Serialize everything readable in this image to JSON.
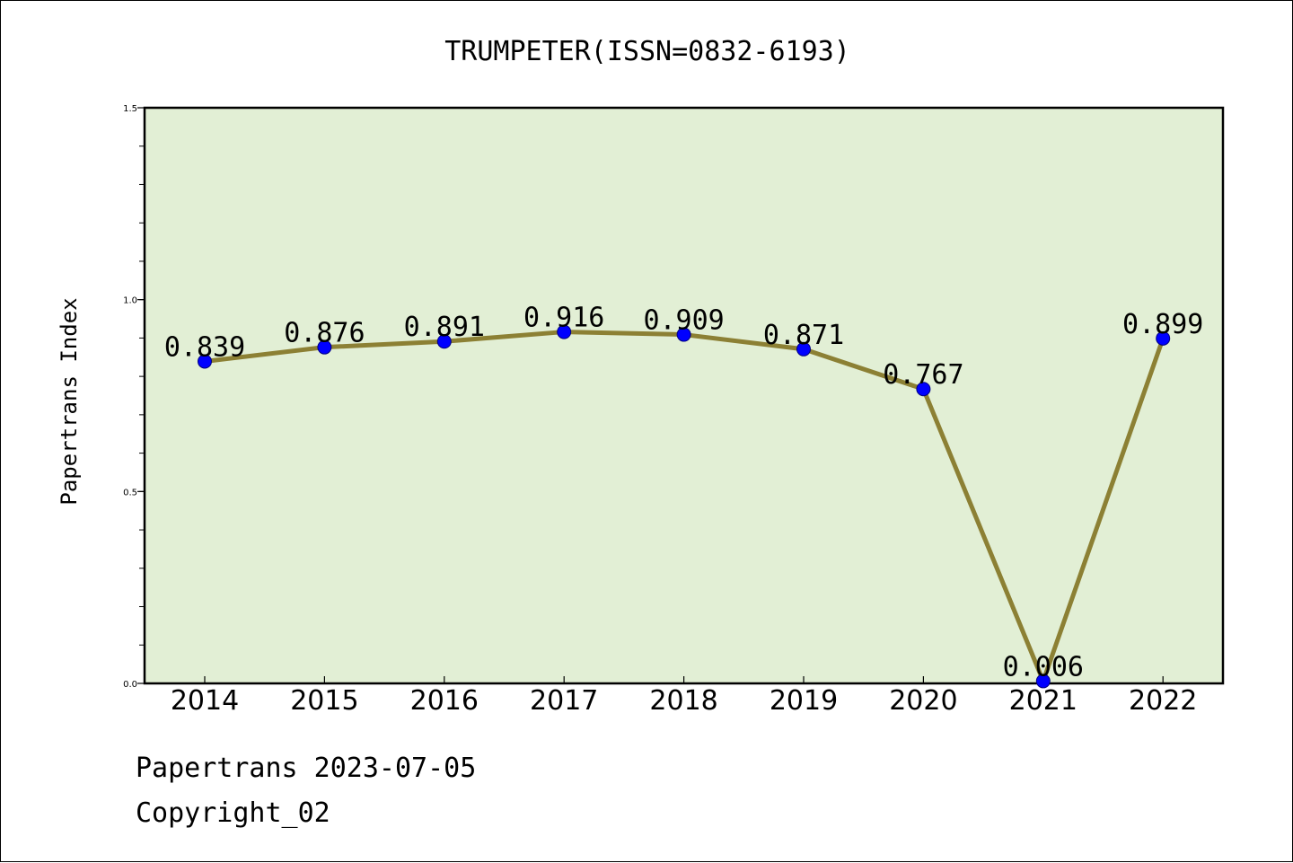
{
  "chart_data": {
    "type": "line",
    "title": "TRUMPETER(ISSN=0832-6193)",
    "xlabel": "",
    "ylabel": "Papertrans Index",
    "categories": [
      "2014",
      "2015",
      "2016",
      "2017",
      "2018",
      "2019",
      "2020",
      "2021",
      "2022"
    ],
    "series": [
      {
        "values": [
          0.839,
          0.876,
          0.891,
          0.916,
          0.909,
          0.871,
          0.767,
          0.006,
          0.899
        ],
        "data_labels": [
          "0.839",
          "0.876",
          "0.891",
          "0.916",
          "0.909",
          "0.871",
          "0.767",
          "0.006",
          "0.899"
        ]
      }
    ],
    "ylim": [
      0,
      1.5
    ],
    "yticks": [
      0.0,
      0.5,
      1.0,
      1.5
    ],
    "ytick_labels": [
      "0.0",
      "0.5",
      "1.0",
      "1.5"
    ],
    "grid": false,
    "legend": "none"
  },
  "footer": {
    "line1": "Papertrans 2023-07-05",
    "line2": "Copyright_02"
  },
  "colors": {
    "plot_background": "#e2efd5",
    "line": "#8c8034",
    "marker": "#0000ff",
    "axes": "#000000"
  }
}
